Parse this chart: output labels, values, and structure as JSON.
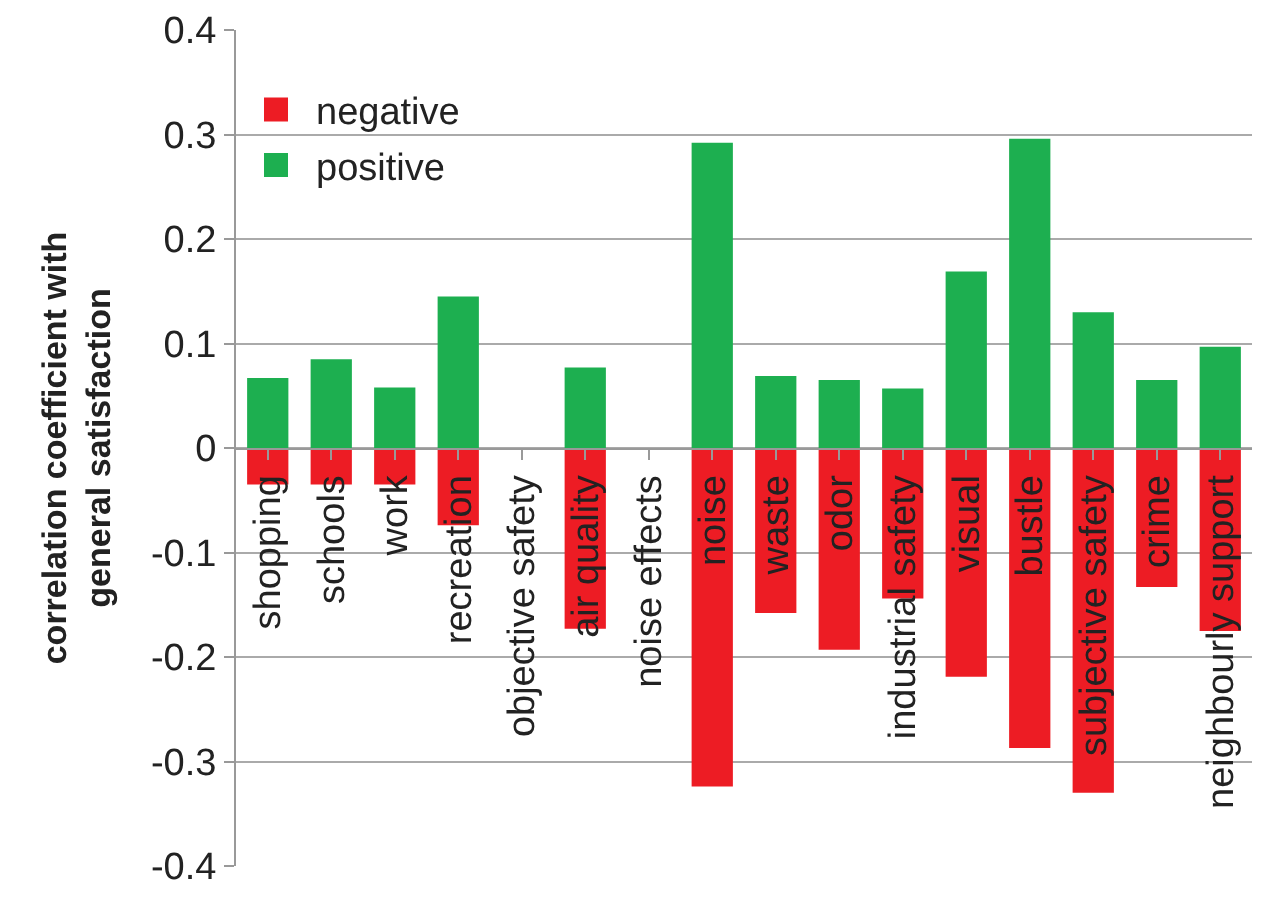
{
  "chart_data": {
    "type": "bar",
    "stacked": true,
    "ylabel": "correlation coefficient with general satisfaction",
    "categories": [
      "shopping",
      "schools",
      "work",
      "recreation",
      "objective safety",
      "air quality",
      "noise effects",
      "noise",
      "waste",
      "odor",
      "industrial safety",
      "visual",
      "bustle",
      "subjective safety",
      "crime",
      "neighbourly support"
    ],
    "series": [
      {
        "name": "negative",
        "color": "#ed1c24",
        "values": [
          -0.035,
          -0.035,
          -0.035,
          -0.074,
          null,
          -0.173,
          null,
          -0.324,
          -0.158,
          -0.193,
          -0.144,
          -0.219,
          -0.287,
          -0.33,
          -0.133,
          -0.175
        ]
      },
      {
        "name": "positive",
        "color": "#1daf50",
        "values": [
          0.067,
          0.085,
          0.058,
          0.145,
          null,
          0.077,
          null,
          0.292,
          0.069,
          0.065,
          0.057,
          0.169,
          0.296,
          0.13,
          0.065,
          0.097
        ]
      }
    ],
    "ylim": [
      -0.4,
      0.4
    ],
    "yticks": [
      -0.4,
      -0.3,
      -0.2,
      -0.1,
      0,
      0.1,
      0.2,
      0.3,
      0.4
    ],
    "grid": "y",
    "legend": "top left"
  }
}
